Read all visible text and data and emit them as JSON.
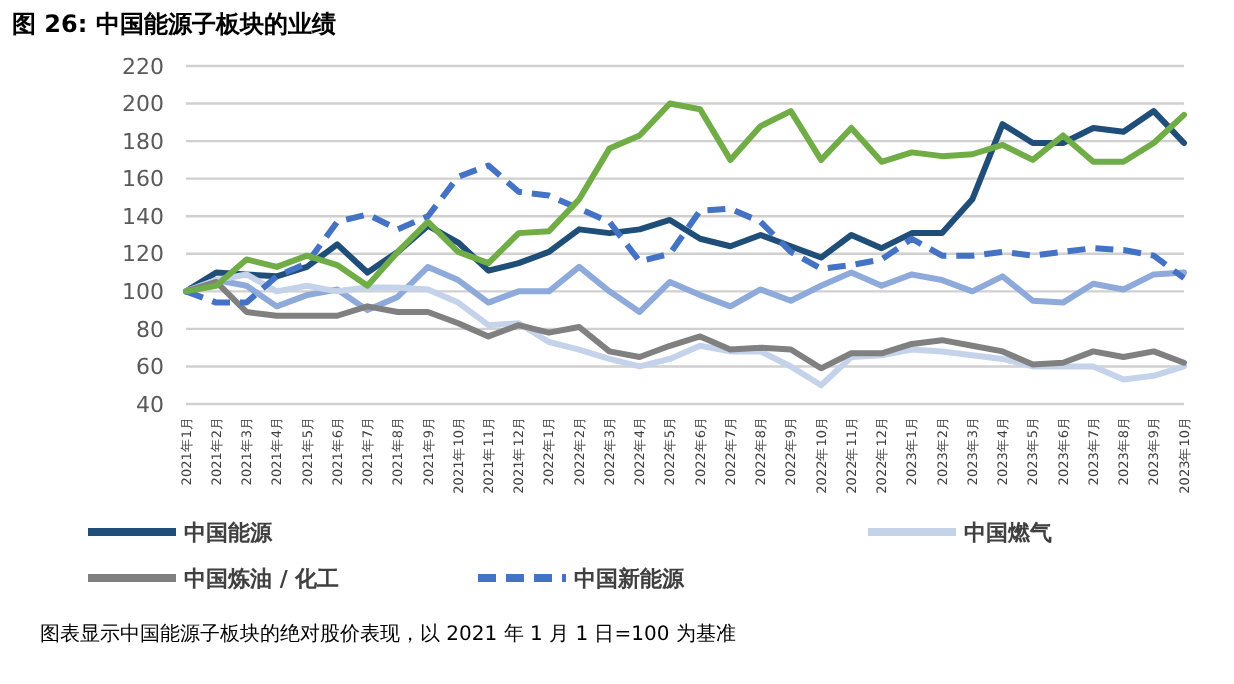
{
  "chart_data": {
    "type": "line",
    "title": "图 26:  中国能源子板块的业绩",
    "categories": [
      "2021年1月",
      "2021年2月",
      "2021年3月",
      "2021年4月",
      "2021年5月",
      "2021年6月",
      "2021年7月",
      "2021年8月",
      "2021年9月",
      "2021年10月",
      "2021年11月",
      "2021年12月",
      "2022年1月",
      "2022年2月",
      "2022年3月",
      "2022年4月",
      "2022年5月",
      "2022年6月",
      "2022年7月",
      "2022年8月",
      "2022年9月",
      "2022年10月",
      "2022年11月",
      "2022年12月",
      "2023年1月",
      "2023年2月",
      "2023年3月",
      "2023年4月",
      "2023年5月",
      "2023年6月",
      "2023年7月",
      "2023年8月",
      "2023年9月",
      "2023年10月"
    ],
    "series": [
      {
        "name": "中国能源",
        "color": "#1f4e79",
        "values": [
          100,
          110,
          109,
          108,
          113,
          125,
          110,
          121,
          135,
          126,
          111,
          115,
          121,
          133,
          131,
          133,
          138,
          128,
          124,
          130,
          124,
          118,
          130,
          123,
          131,
          131,
          149,
          189,
          179,
          179,
          187,
          185,
          196,
          179
        ]
      },
      {
        "color": "#8eaadb",
        "values": [
          100,
          106,
          103,
          92,
          98,
          101,
          90,
          97,
          113,
          106,
          94,
          100,
          100,
          113,
          100,
          89,
          105,
          98,
          92,
          101,
          95,
          103,
          110,
          103,
          109,
          106,
          100,
          108,
          95,
          94,
          104,
          101,
          109,
          110
        ]
      },
      {
        "name": "中国燃气",
        "color": "#c5d3ea",
        "values": [
          100,
          106,
          109,
          100,
          103,
          100,
          102,
          102,
          101,
          94,
          82,
          83,
          73,
          69,
          64,
          60,
          64,
          71,
          68,
          68,
          60,
          50,
          65,
          66,
          69,
          68,
          66,
          64,
          60,
          60,
          60,
          53,
          55,
          60
        ]
      },
      {
        "name": "中国炼油 / 化工",
        "color": "#808080",
        "values": [
          100,
          105,
          89,
          87,
          87,
          87,
          92,
          89,
          89,
          83,
          76,
          82,
          78,
          81,
          68,
          65,
          71,
          76,
          69,
          70,
          69,
          59,
          67,
          67,
          72,
          74,
          71,
          68,
          61,
          62,
          68,
          65,
          68,
          62
        ]
      },
      {
        "name": "中国新能源",
        "color": "#4472c4",
        "line_style": "dashed",
        "values": [
          100,
          94,
          94,
          108,
          115,
          137,
          141,
          133,
          140,
          161,
          167,
          153,
          151,
          144,
          137,
          116,
          120,
          143,
          144,
          137,
          121,
          112,
          114,
          117,
          128,
          119,
          119,
          121,
          119,
          121,
          123,
          122,
          119,
          107
        ]
      },
      {
        "color": "#70ad47",
        "values": [
          100,
          103,
          117,
          113,
          119,
          114,
          103,
          121,
          137,
          121,
          115,
          131,
          132,
          149,
          176,
          183,
          200,
          197,
          170,
          188,
          196,
          170,
          187,
          169,
          174,
          172,
          173,
          178,
          170,
          183,
          169,
          169,
          179,
          194
        ]
      }
    ],
    "ylim": [
      40,
      220
    ],
    "yticks": [
      40,
      60,
      80,
      100,
      120,
      140,
      160,
      180,
      200,
      220
    ],
    "grid": "y",
    "legend": "bottom",
    "line_style": "solid",
    "marker": "none",
    "annotations": [
      "图表显示中国能源子板块的绝对股价表现，以 2021 年 1 月 1 日=100 为基准"
    ]
  }
}
